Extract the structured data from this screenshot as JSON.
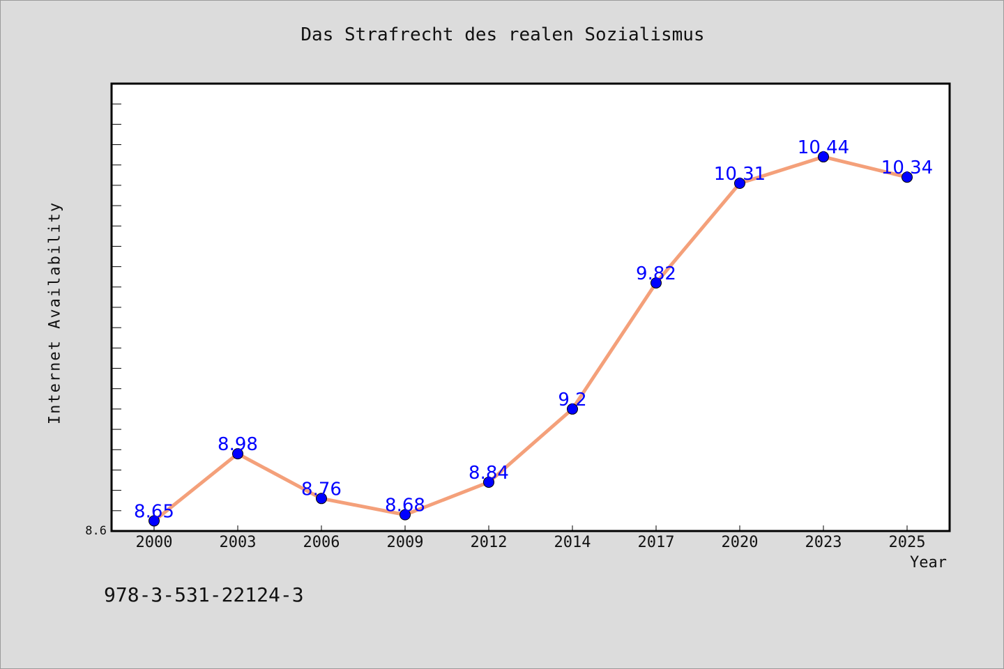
{
  "chart_data": {
    "type": "line",
    "title": "Das Strafrecht des realen Sozialismus",
    "xlabel": "Year",
    "ylabel": "Internet Availability",
    "categories": [
      "2000",
      "2003",
      "2006",
      "2009",
      "2012",
      "2014",
      "2017",
      "2020",
      "2023",
      "2025"
    ],
    "series": [
      {
        "values": [
          8.65,
          8.98,
          8.76,
          8.68,
          8.84,
          9.2,
          9.82,
          10.31,
          10.44,
          10.34
        ],
        "labels": [
          "8.65",
          "8.98",
          "8.76",
          "8.68",
          "8.84",
          "9.2",
          "9.82",
          "10.31",
          "10.44",
          "10.34"
        ],
        "line_color": "#f4a07a",
        "marker_color": "#0000ff",
        "label_color": "#0000ff"
      }
    ],
    "ylim": [
      8.6,
      10.8
    ],
    "y_tick_label": "8.6",
    "grid": false,
    "legend": "none"
  },
  "footer": {
    "isbn": "978-3-531-22124-3"
  },
  "colors": {
    "background": "#dcdcdc",
    "plot_background": "#ffffff",
    "axis": "#000000"
  }
}
